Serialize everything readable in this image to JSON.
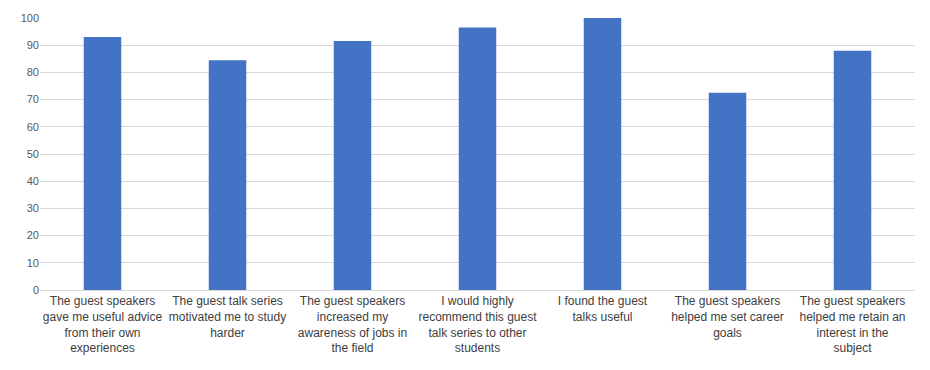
{
  "chart_data": {
    "type": "bar",
    "categories": [
      "The guest speakers gave me useful advice from their own experiences",
      "The guest talk series motivated me to study harder",
      "The guest speakers increased my awareness of jobs in the field",
      "I would highly recommend this guest talk series to other students",
      "I found the guest talks useful",
      "The guest speakers helped me set career goals",
      "The guest speakers helped me retain an interest in the subject"
    ],
    "values": [
      93,
      84.5,
      91.5,
      96.5,
      100,
      72.5,
      88
    ],
    "color": "#4472c4",
    "ylim": [
      0,
      100
    ],
    "yticks": [
      0,
      10,
      20,
      30,
      40,
      50,
      60,
      70,
      80,
      90,
      100
    ],
    "grid": true
  }
}
